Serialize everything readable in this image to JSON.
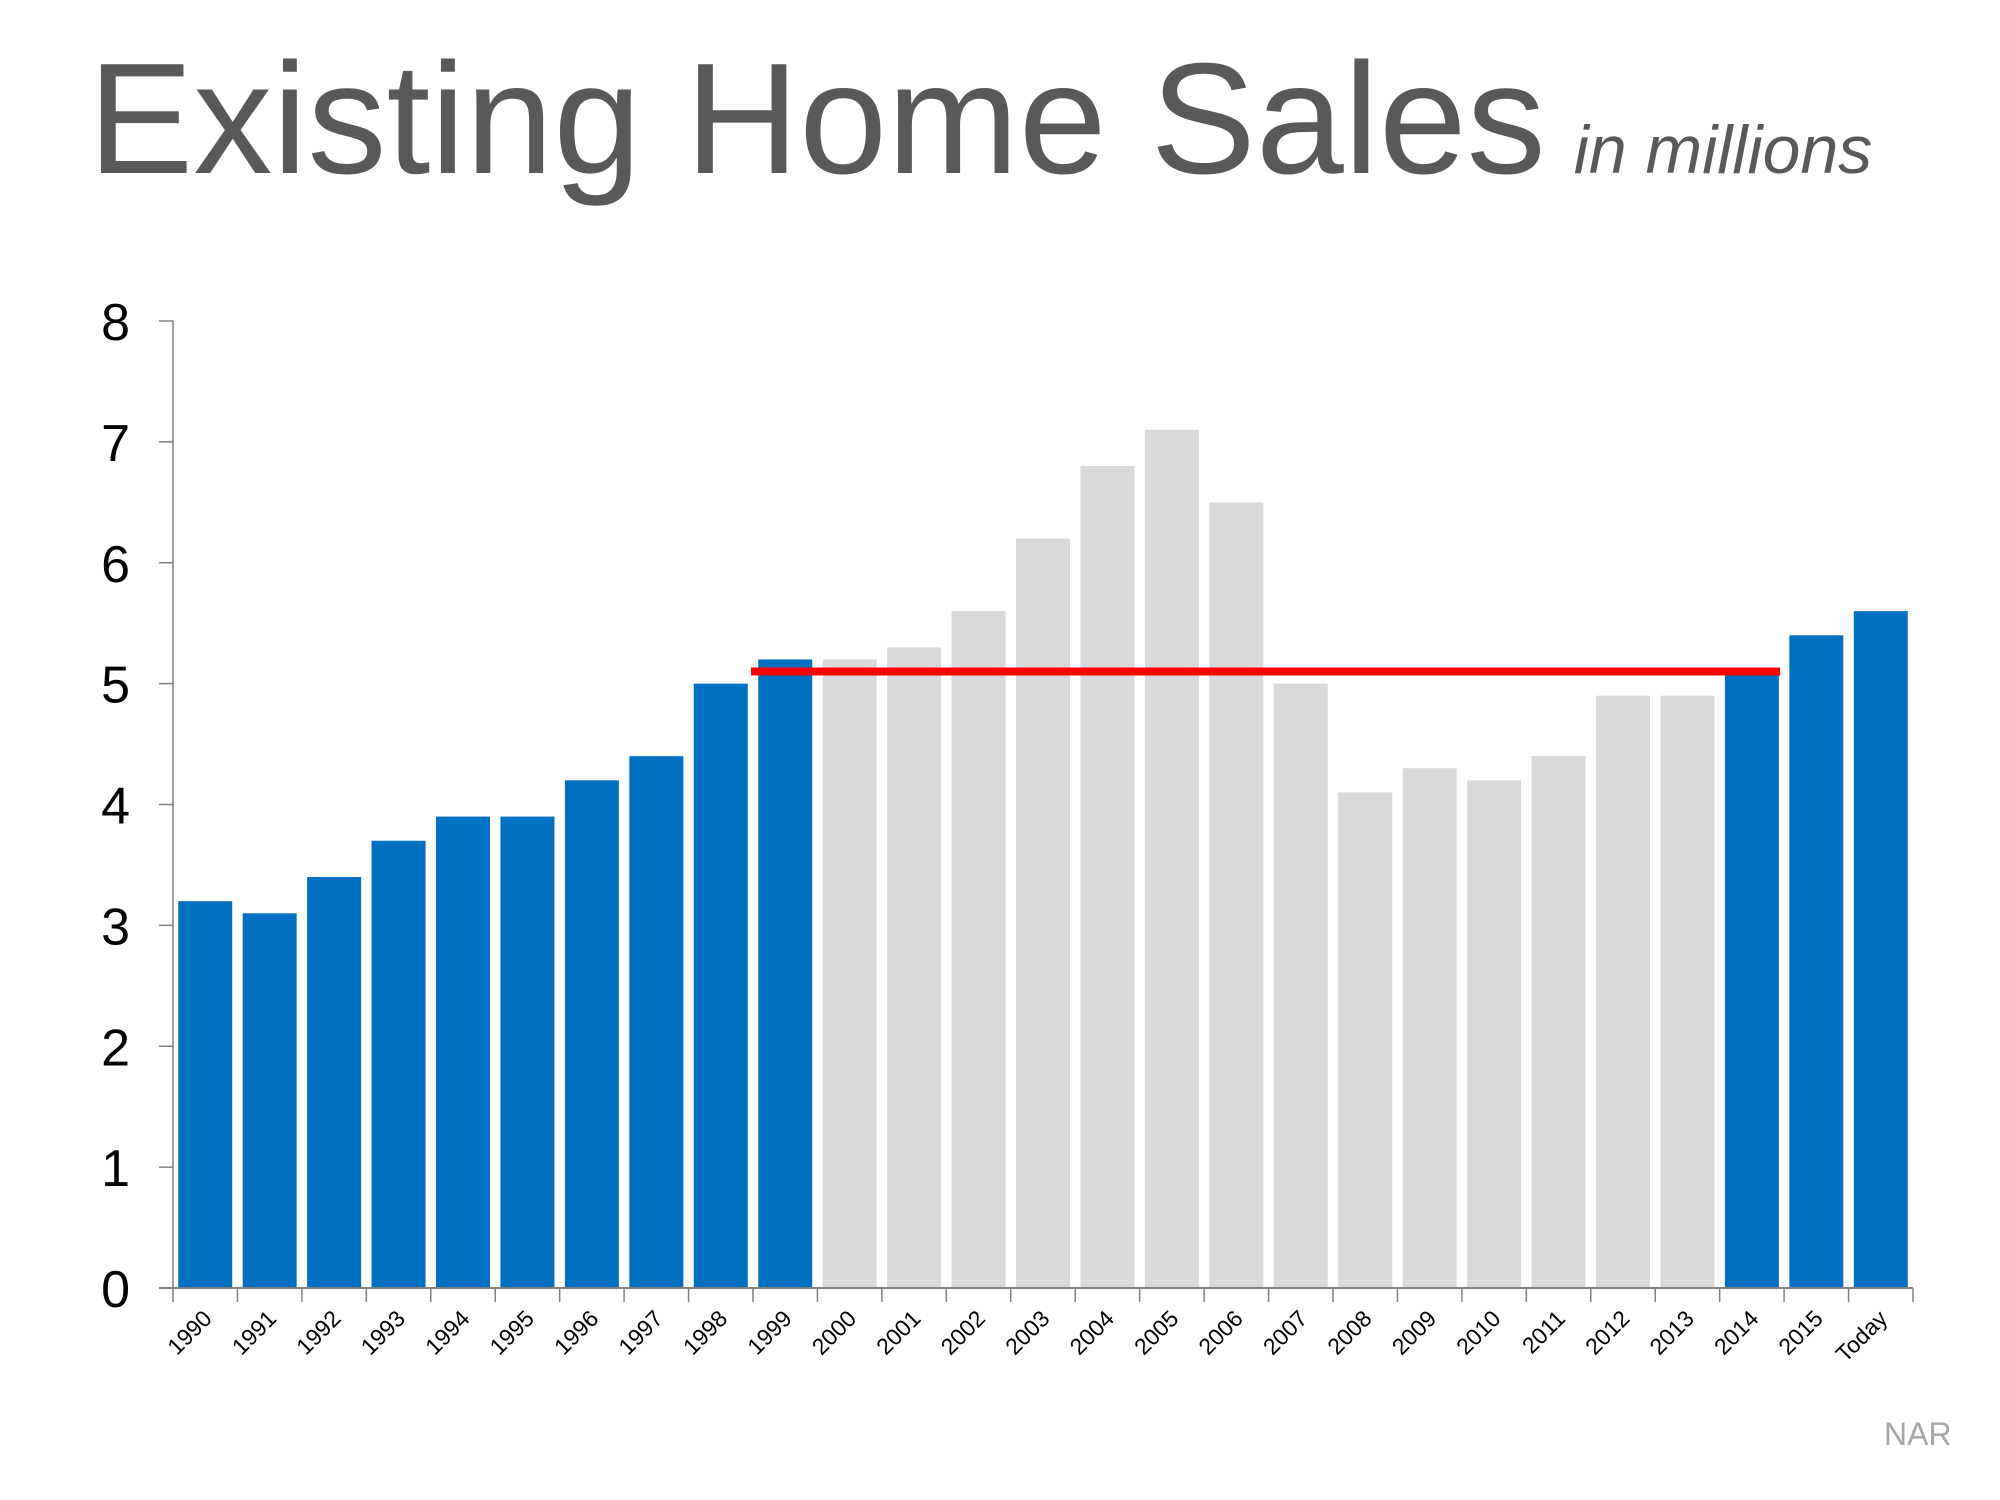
{
  "chart_data": {
    "type": "bar",
    "title": "Existing Home Sales",
    "subtitle": "in millions",
    "xlabel": "",
    "ylabel": "",
    "ylim": [
      0,
      8
    ],
    "yticks": [
      0,
      1,
      2,
      3,
      4,
      5,
      6,
      7,
      8
    ],
    "grid": false,
    "categories": [
      "1990",
      "1991",
      "1992",
      "1993",
      "1994",
      "1995",
      "1996",
      "1997",
      "1998",
      "1999",
      "2000",
      "2001",
      "2002",
      "2003",
      "2004",
      "2005",
      "2006",
      "2007",
      "2008",
      "2009",
      "2010",
      "2011",
      "2012",
      "2013",
      "2014",
      "2015",
      "Today"
    ],
    "values": [
      3.2,
      3.1,
      3.4,
      3.7,
      3.9,
      3.9,
      4.2,
      4.4,
      5.0,
      5.2,
      5.2,
      5.3,
      5.6,
      6.2,
      6.8,
      7.1,
      6.5,
      5.0,
      4.1,
      4.3,
      4.2,
      4.4,
      4.9,
      4.9,
      5.1,
      5.4,
      5.6
    ],
    "highlighted": [
      true,
      true,
      true,
      true,
      true,
      true,
      true,
      true,
      true,
      true,
      false,
      false,
      false,
      false,
      false,
      false,
      false,
      false,
      false,
      false,
      false,
      false,
      false,
      false,
      true,
      true,
      true
    ],
    "reference_line": {
      "value": 5.1,
      "from": "1999",
      "to": "2014",
      "color": "#FF0000"
    },
    "colors": {
      "highlight": "#0070C0",
      "other": "#D9D9D9",
      "axis": "#808080"
    },
    "source": "NAR"
  }
}
